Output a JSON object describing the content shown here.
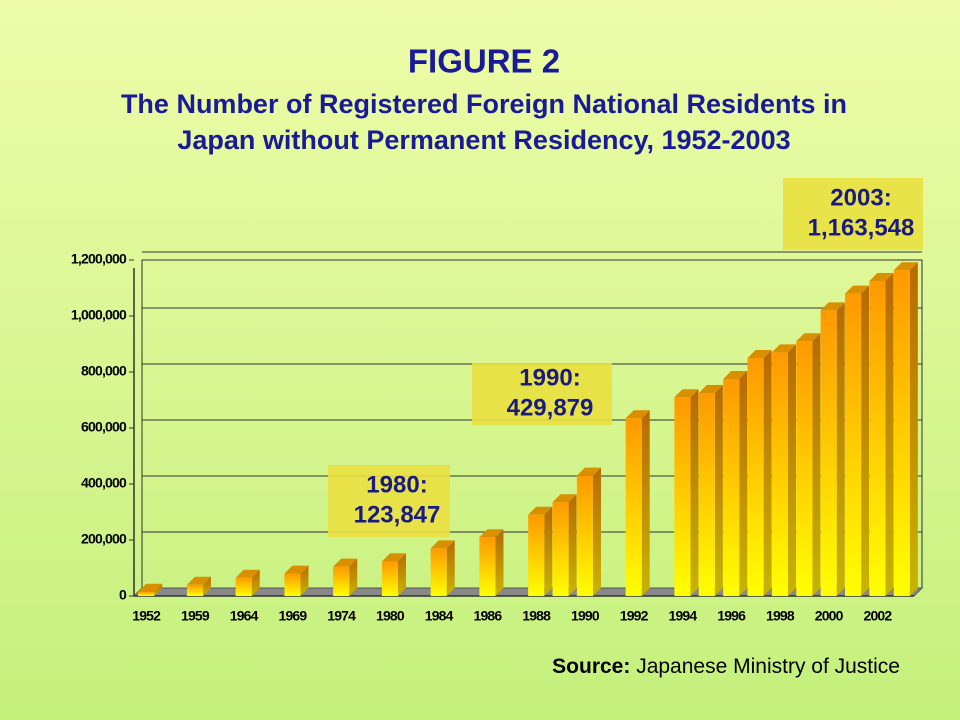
{
  "chart_data": {
    "type": "bar",
    "title": "FIGURE 2",
    "subtitle": [
      "The Number of Registered Foreign National Residents in",
      "Japan without Permanent Residency, 1952-2003"
    ],
    "categories": [
      "1952",
      null,
      "1959",
      null,
      "1964",
      null,
      "1969",
      null,
      "1974",
      null,
      "1980",
      null,
      "1984",
      null,
      "1986",
      null,
      "1988",
      null,
      "1990",
      null,
      "1992",
      null,
      "1994",
      null,
      "1996",
      null,
      "1998",
      null,
      "2000",
      null,
      "2002",
      null
    ],
    "values": [
      15000,
      null,
      40000,
      null,
      65000,
      null,
      80000,
      null,
      105000,
      null,
      123847,
      null,
      170000,
      null,
      210000,
      null,
      290000,
      335000,
      429879,
      null,
      635000,
      null,
      710000,
      725000,
      775000,
      850000,
      870000,
      910000,
      1020000,
      1080000,
      1125000,
      1163548
    ],
    "color": "#ff9900",
    "ylim": [
      0,
      1200000
    ],
    "yticks": [
      0,
      {
        "value": 200000,
        "label": "200,000"
      },
      {
        "value": 400000,
        "label": "400,000"
      },
      {
        "value": 600000,
        "label": "600,000"
      },
      {
        "value": 800000,
        "label": "800,000"
      },
      {
        "value": 1000000,
        "label": "1,000,000"
      },
      {
        "value": 1200000,
        "label": "1,200,000"
      }
    ],
    "grid": true,
    "annotations": [
      {
        "lines": [
          "1980:",
          "123,847"
        ],
        "category": 10
      },
      {
        "lines": [
          "1990:",
          "429,879"
        ],
        "category": 18
      },
      {
        "lines": [
          "2003:",
          "1,163,548"
        ],
        "category": 31
      }
    ],
    "source_label": "Source:",
    "source_text": "Japanese Ministry of Justice"
  }
}
